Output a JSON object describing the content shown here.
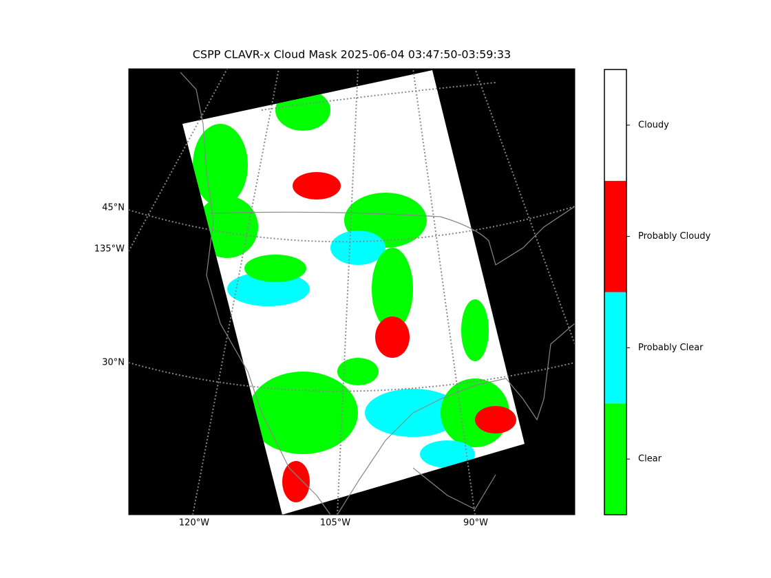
{
  "title": "CSPP CLAVR-x Cloud Mask 2025-06-04 03:47:50-03:59:33",
  "map": {
    "lat_labels": [
      "45°N",
      "30°N"
    ],
    "lon_label_left": "135°W",
    "lon_labels_bottom": [
      "120°W",
      "105°W",
      "90°W"
    ]
  },
  "colorbar": {
    "classes": [
      {
        "label": "Clear",
        "color": "#00ff00"
      },
      {
        "label": "Probably Clear",
        "color": "#00ffff"
      },
      {
        "label": "Probably Cloudy",
        "color": "#ff0000"
      },
      {
        "label": "Cloudy",
        "color": "#ffffff"
      }
    ]
  }
}
